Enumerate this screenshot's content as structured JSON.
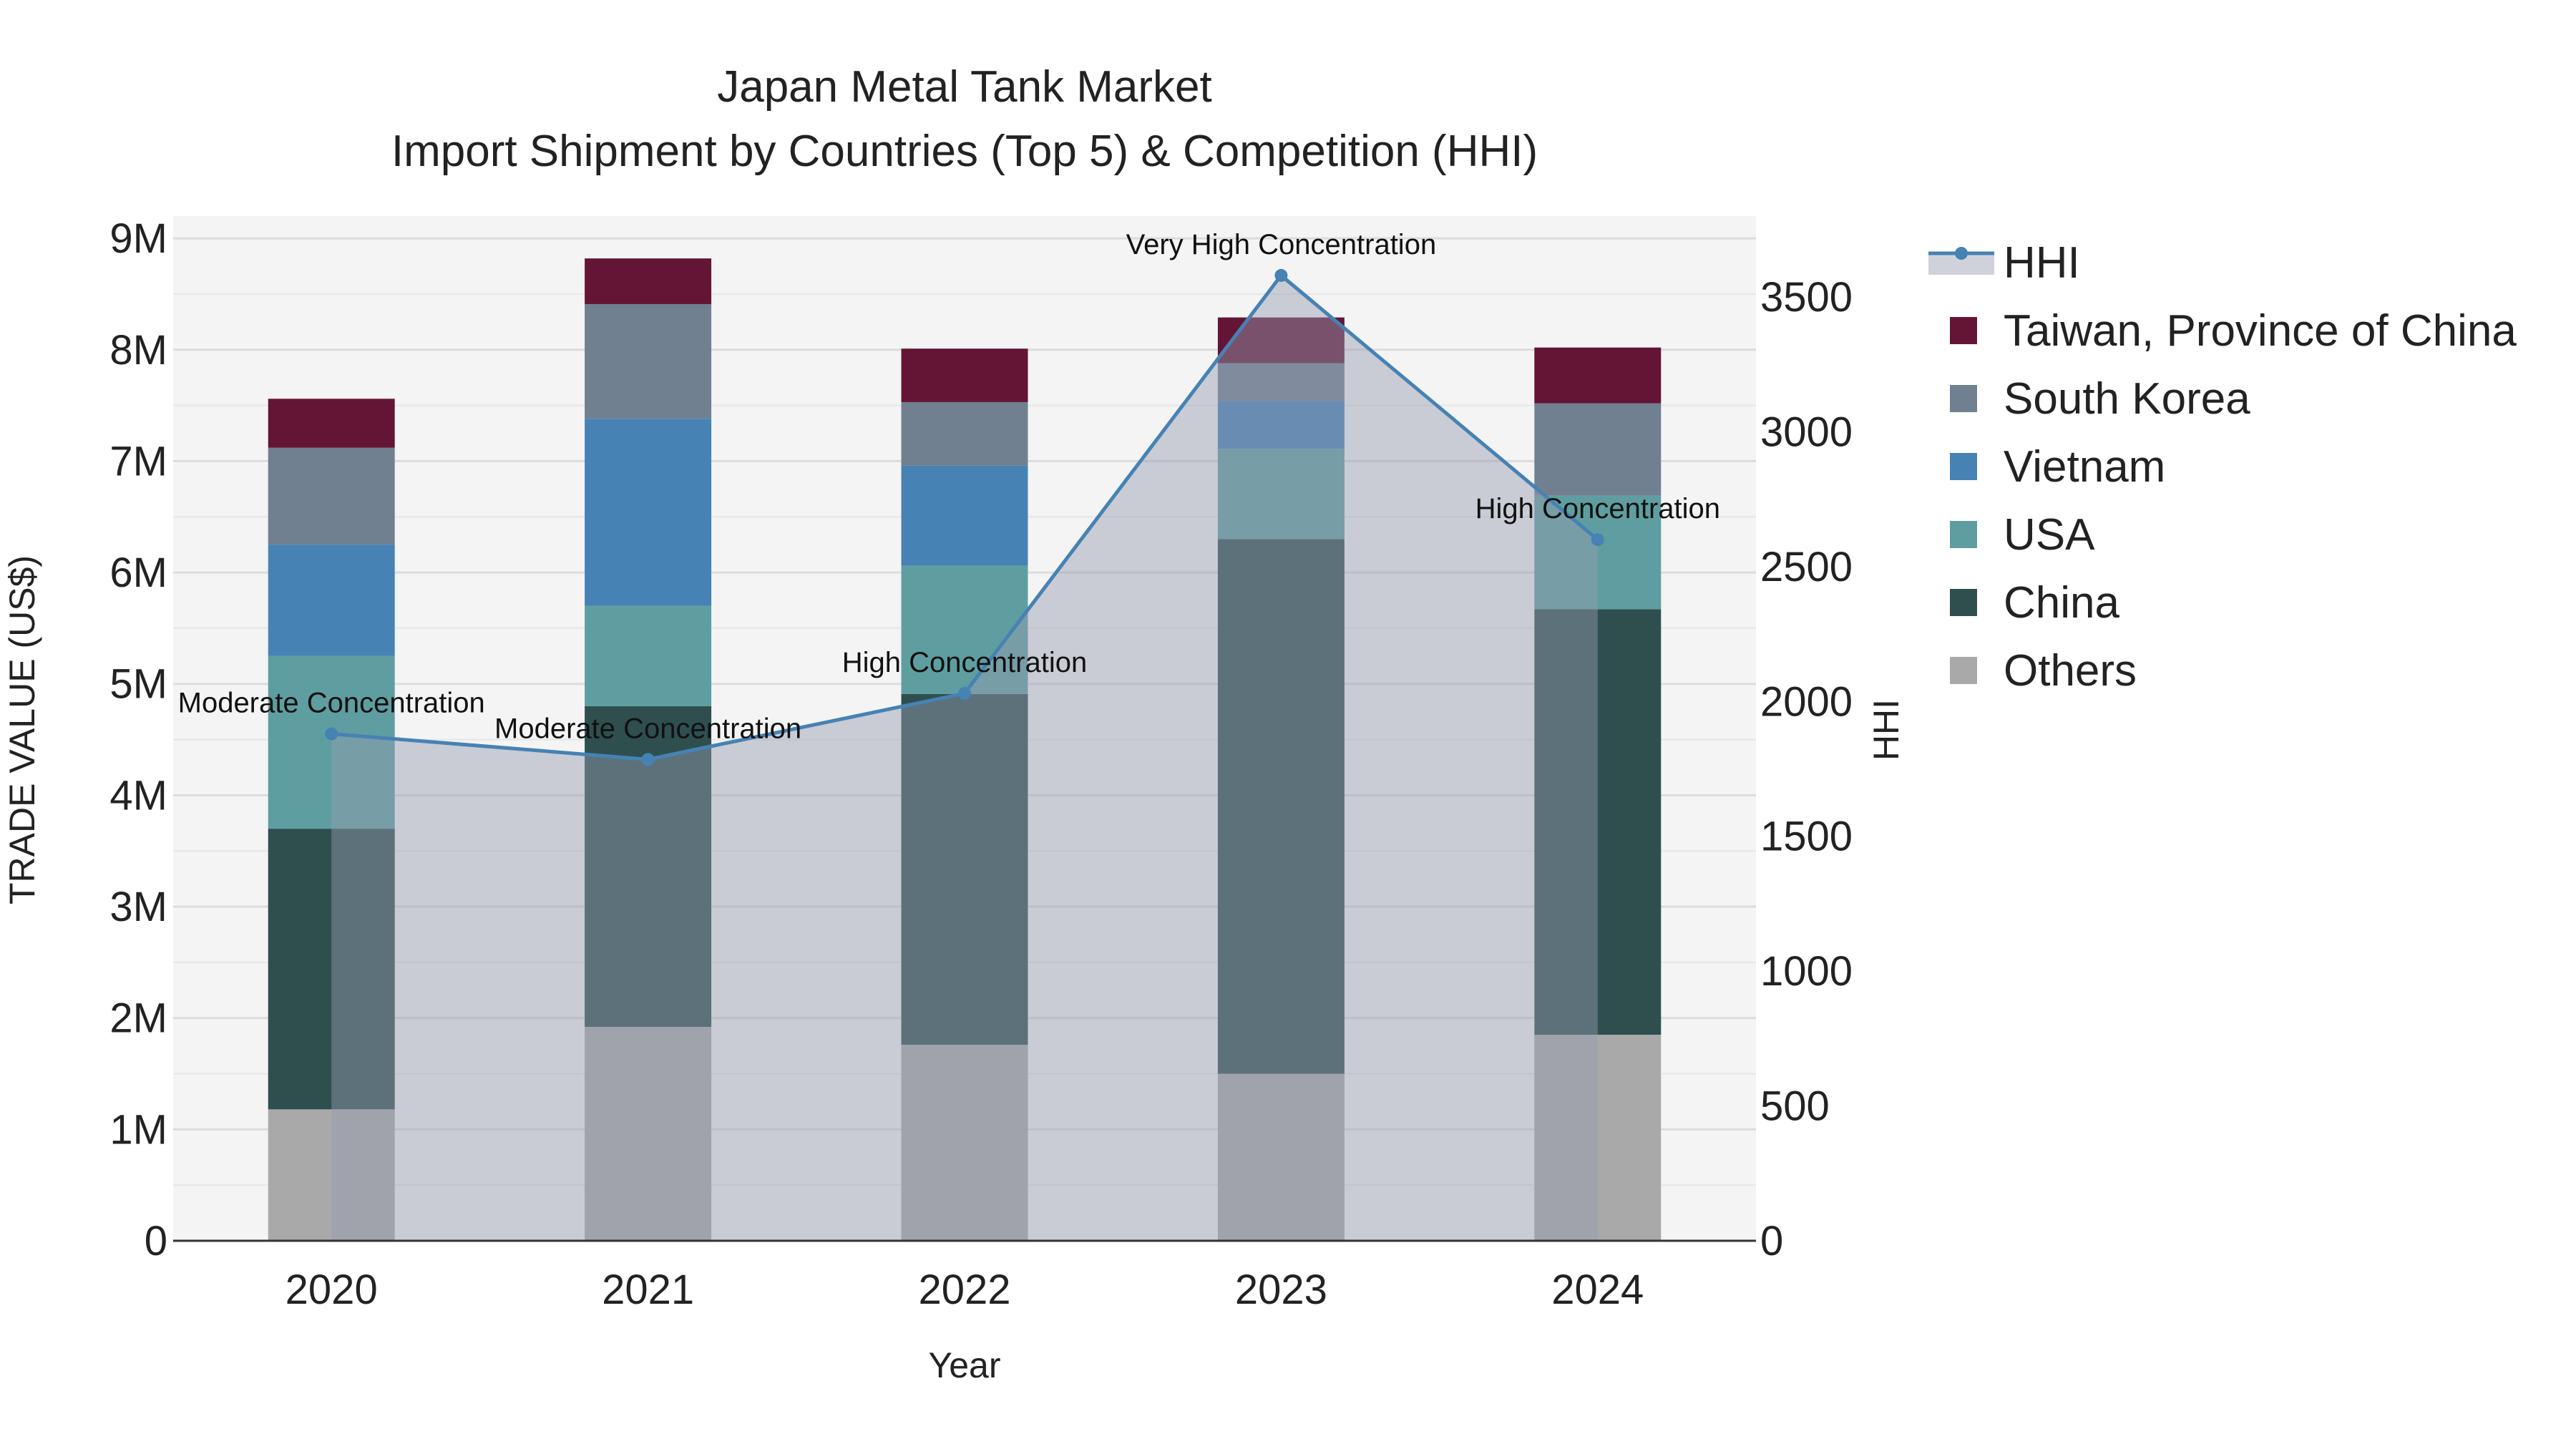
{
  "chart_data": {
    "type": "bar",
    "subtype": "stacked bar with secondary-axis area line",
    "title": "Japan Metal Tank Market",
    "subtitle": "Import Shipment by Countries (Top 5) & Competition (HHI)",
    "xlabel": "Year",
    "ylabel": "TRADE VALUE (US$)",
    "y2label": "HHI",
    "categories": [
      "2020",
      "2021",
      "2022",
      "2023",
      "2024"
    ],
    "ylim": [
      0,
      9200000
    ],
    "y_ticks": [
      {
        "value": 0,
        "label": "0"
      },
      {
        "value": 1000000,
        "label": "1M"
      },
      {
        "value": 2000000,
        "label": "2M"
      },
      {
        "value": 3000000,
        "label": "3M"
      },
      {
        "value": 4000000,
        "label": "4M"
      },
      {
        "value": 5000000,
        "label": "5M"
      },
      {
        "value": 6000000,
        "label": "6M"
      },
      {
        "value": 7000000,
        "label": "7M"
      },
      {
        "value": 8000000,
        "label": "8M"
      },
      {
        "value": 9000000,
        "label": "9M"
      }
    ],
    "y2lim": [
      0,
      3800
    ],
    "y2_ticks": [
      {
        "value": 0,
        "label": "0"
      },
      {
        "value": 500,
        "label": "500"
      },
      {
        "value": 1000,
        "label": "1000"
      },
      {
        "value": 1500,
        "label": "1500"
      },
      {
        "value": 2000,
        "label": "2000"
      },
      {
        "value": 2500,
        "label": "2500"
      },
      {
        "value": 3000,
        "label": "3000"
      },
      {
        "value": 3500,
        "label": "3500"
      }
    ],
    "series": [
      {
        "name": "Others",
        "color": "#a9a9a9",
        "values": [
          1180000,
          1920000,
          1760000,
          1500000,
          1850000
        ]
      },
      {
        "name": "China",
        "color": "#2f4f4f",
        "values": [
          2520000,
          2880000,
          3150000,
          4800000,
          3820000
        ]
      },
      {
        "name": "USA",
        "color": "#5f9ea0",
        "values": [
          1550000,
          900000,
          1150000,
          810000,
          1020000
        ]
      },
      {
        "name": "Vietnam",
        "color": "#4682b4",
        "values": [
          1000000,
          1680000,
          900000,
          430000,
          0
        ]
      },
      {
        "name": "South Korea",
        "color": "#708090",
        "values": [
          870000,
          1030000,
          570000,
          340000,
          830000
        ]
      },
      {
        "name": "Taiwan, Province of China",
        "color": "#641536",
        "values": [
          440000,
          410000,
          480000,
          410000,
          500000
        ]
      }
    ],
    "hhi": {
      "name": "HHI",
      "color": "#4682b4",
      "fill": "rgba(148,156,175,0.45)",
      "values": [
        1880,
        1785,
        2030,
        3580,
        2600
      ],
      "labels": [
        "Moderate Concentration",
        "Moderate Concentration",
        "High Concentration",
        "Very High Concentration",
        "High Concentration"
      ]
    },
    "legend": {
      "position": "top-right",
      "order": [
        "HHI",
        "Taiwan, Province of China",
        "South Korea",
        "Vietnam",
        "USA",
        "China",
        "Others"
      ]
    },
    "grid": true
  }
}
